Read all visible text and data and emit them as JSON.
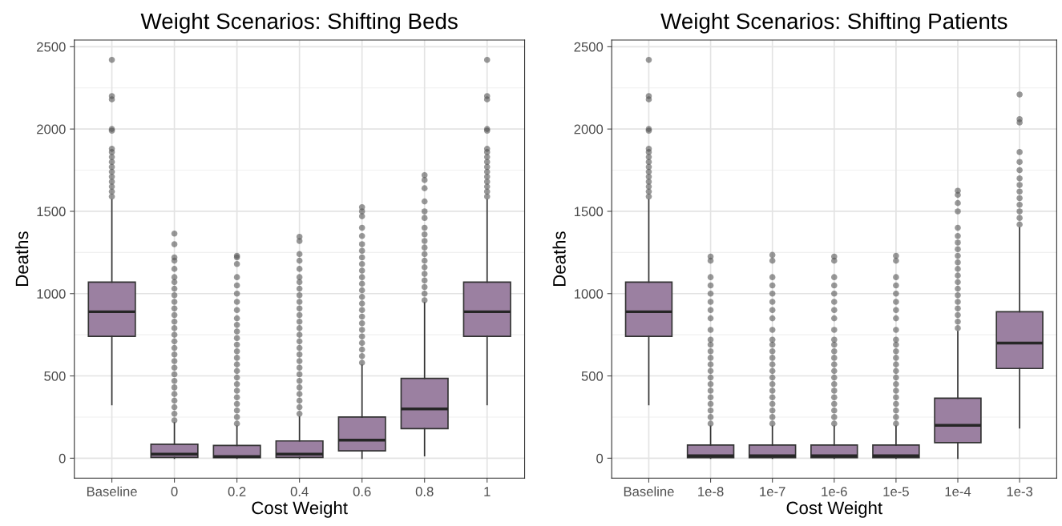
{
  "chart_data": [
    {
      "type": "box",
      "title": "Weight Scenarios: Shifting Beds",
      "xlabel": "Cost Weight",
      "ylabel": "Deaths",
      "color": "#9b80a1",
      "grid": true,
      "ylim": [
        -121,
        2541
      ],
      "yticks": [
        0,
        500,
        1000,
        1500,
        2000,
        2500
      ],
      "categories": [
        "Baseline",
        "0",
        "0.2",
        "0.4",
        "0.6",
        "0.8",
        "1"
      ],
      "boxes": [
        {
          "low": 325,
          "q1": 740,
          "median": 890,
          "q3": 1070,
          "high": 1570,
          "outliers": [
            1590,
            1620,
            1650,
            1680,
            1710,
            1740,
            1770,
            1800,
            1830,
            1860,
            1880,
            1990,
            2000,
            2180,
            2200,
            2420
          ]
        },
        {
          "low": 0,
          "q1": 5,
          "median": 25,
          "q3": 85,
          "high": 215,
          "outliers": [
            230,
            270,
            310,
            350,
            390,
            430,
            470,
            510,
            550,
            590,
            630,
            670,
            710,
            750,
            790,
            830,
            870,
            910,
            950,
            990,
            1030,
            1070,
            1100,
            1150,
            1200,
            1220,
            1300,
            1365
          ]
        },
        {
          "low": 0,
          "q1": 3,
          "median": 10,
          "q3": 78,
          "high": 195,
          "outliers": [
            210,
            250,
            290,
            330,
            370,
            410,
            450,
            490,
            530,
            570,
            610,
            650,
            690,
            730,
            770,
            810,
            850,
            900,
            950,
            1000,
            1050,
            1100,
            1180,
            1220,
            1230
          ]
        },
        {
          "low": 0,
          "q1": 5,
          "median": 25,
          "q3": 105,
          "high": 250,
          "outliers": [
            270,
            310,
            350,
            390,
            430,
            470,
            510,
            550,
            590,
            630,
            670,
            710,
            750,
            790,
            830,
            870,
            910,
            950,
            990,
            1030,
            1070,
            1100,
            1150,
            1200,
            1240,
            1320,
            1345
          ]
        },
        {
          "low": 0,
          "q1": 45,
          "median": 110,
          "q3": 250,
          "high": 565,
          "outliers": [
            580,
            620,
            660,
            700,
            740,
            780,
            820,
            860,
            900,
            940,
            980,
            1020,
            1060,
            1100,
            1140,
            1180,
            1220,
            1260,
            1300,
            1350,
            1400,
            1470,
            1500,
            1525
          ]
        },
        {
          "low": 15,
          "q1": 180,
          "median": 300,
          "q3": 485,
          "high": 945,
          "outliers": [
            960,
            1000,
            1040,
            1080,
            1120,
            1160,
            1200,
            1240,
            1280,
            1320,
            1360,
            1400,
            1460,
            1500,
            1560,
            1640,
            1690,
            1720
          ]
        },
        {
          "low": 325,
          "q1": 740,
          "median": 890,
          "q3": 1070,
          "high": 1570,
          "outliers": [
            1590,
            1620,
            1650,
            1680,
            1710,
            1740,
            1770,
            1800,
            1830,
            1860,
            1880,
            1990,
            2000,
            2180,
            2200,
            2420
          ]
        }
      ]
    },
    {
      "type": "box",
      "title": "Weight Scenarios: Shifting Patients",
      "xlabel": "Cost Weight",
      "ylabel": "Deaths",
      "color": "#9b80a1",
      "grid": true,
      "ylim": [
        -121,
        2541
      ],
      "yticks": [
        0,
        500,
        1000,
        1500,
        2000,
        2500
      ],
      "categories": [
        "Baseline",
        "1e-8",
        "1e-7",
        "1e-6",
        "1e-5",
        "1e-4",
        "1e-3"
      ],
      "boxes": [
        {
          "low": 325,
          "q1": 740,
          "median": 890,
          "q3": 1070,
          "high": 1570,
          "outliers": [
            1590,
            1620,
            1650,
            1680,
            1710,
            1740,
            1770,
            1800,
            1830,
            1860,
            1880,
            1990,
            2000,
            2180,
            2200,
            2420
          ]
        },
        {
          "low": 0,
          "q1": 3,
          "median": 15,
          "q3": 80,
          "high": 195,
          "outliers": [
            210,
            250,
            290,
            330,
            370,
            410,
            450,
            490,
            530,
            570,
            610,
            650,
            690,
            720,
            780,
            850,
            900,
            950,
            1000,
            1050,
            1100,
            1200,
            1225
          ]
        },
        {
          "low": 0,
          "q1": 3,
          "median": 15,
          "q3": 80,
          "high": 195,
          "outliers": [
            210,
            250,
            290,
            330,
            370,
            410,
            450,
            490,
            530,
            570,
            610,
            650,
            690,
            720,
            780,
            850,
            900,
            950,
            1000,
            1050,
            1100,
            1200,
            1235
          ]
        },
        {
          "low": 0,
          "q1": 3,
          "median": 15,
          "q3": 80,
          "high": 195,
          "outliers": [
            210,
            250,
            290,
            330,
            370,
            410,
            450,
            490,
            530,
            570,
            610,
            650,
            690,
            720,
            780,
            850,
            900,
            950,
            1000,
            1050,
            1100,
            1200,
            1225
          ]
        },
        {
          "low": 0,
          "q1": 3,
          "median": 15,
          "q3": 80,
          "high": 195,
          "outliers": [
            210,
            250,
            290,
            330,
            370,
            410,
            450,
            490,
            530,
            570,
            610,
            650,
            690,
            720,
            780,
            850,
            900,
            950,
            1000,
            1050,
            1100,
            1200,
            1230
          ]
        },
        {
          "low": 0,
          "q1": 95,
          "median": 200,
          "q3": 365,
          "high": 770,
          "outliers": [
            790,
            830,
            870,
            910,
            950,
            990,
            1030,
            1070,
            1110,
            1150,
            1190,
            1230,
            1270,
            1310,
            1350,
            1400,
            1500,
            1550,
            1600,
            1625
          ]
        },
        {
          "low": 185,
          "q1": 545,
          "median": 700,
          "q3": 890,
          "high": 1400,
          "outliers": [
            1420,
            1460,
            1500,
            1540,
            1580,
            1620,
            1660,
            1700,
            1750,
            1800,
            1860,
            2040,
            2060,
            2210
          ]
        }
      ]
    }
  ]
}
